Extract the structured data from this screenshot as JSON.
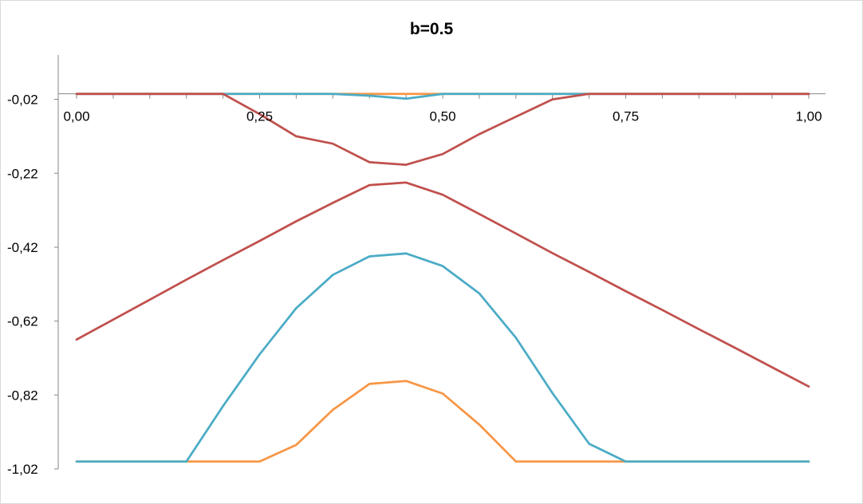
{
  "chart_data": {
    "type": "line",
    "title": "b=0.5",
    "xlabel": "",
    "ylabel": "",
    "xlim": [
      0,
      1
    ],
    "ylim": [
      -1.02,
      0.1
    ],
    "x_ticks": [
      0,
      0.25,
      0.5,
      0.75,
      1
    ],
    "x_tick_labels": [
      "0,00",
      "0,25",
      "0,50",
      "0,75",
      "1,00"
    ],
    "y_ticks": [
      -0.02,
      -0.22,
      -0.42,
      -0.62,
      -0.82,
      -1.02
    ],
    "y_tick_labels": [
      "-0,02",
      "-0,22",
      "-0,42",
      "-0,62",
      "-0,82",
      "-1,02"
    ],
    "x_axis_crosses_y": -0.005,
    "x_minor_step": 0.05,
    "grid": false,
    "legend": "none",
    "series": [
      {
        "color": "#f79646",
        "x": [
          0,
          0.05,
          0.1,
          0.15,
          0.2,
          0.25,
          0.3,
          0.35,
          0.4,
          0.45,
          0.5,
          0.55,
          0.6,
          0.65,
          0.7,
          0.75,
          0.8,
          0.85,
          0.9,
          0.95,
          1
        ],
        "y": [
          -1.0,
          -1.0,
          -1.0,
          -1.0,
          -1.0,
          -1.0,
          -0.955,
          -0.86,
          -0.79,
          -0.782,
          -0.816,
          -0.9,
          -1.0,
          -1.0,
          -1.0,
          -1.0,
          -1.0,
          -1.0,
          -1.0,
          -1.0,
          -1.0
        ]
      },
      {
        "color": "#f79646",
        "x": [
          0,
          0.05,
          0.1,
          0.15,
          0.2,
          0.25,
          0.3,
          0.35,
          0.4,
          0.45,
          0.5,
          0.55,
          0.6,
          0.65,
          0.7,
          0.75,
          0.8,
          0.85,
          0.9,
          0.95,
          1
        ],
        "y": [
          -0.005,
          -0.005,
          -0.005,
          -0.005,
          -0.005,
          -0.005,
          -0.005,
          -0.005,
          -0.005,
          -0.005,
          -0.005,
          -0.005,
          -0.005,
          -0.005,
          -0.005,
          -0.005,
          -0.005,
          -0.005,
          -0.005,
          -0.005,
          -0.005
        ]
      },
      {
        "color": "#4bacc6",
        "x": [
          0,
          0.05,
          0.1,
          0.15,
          0.2,
          0.25,
          0.3,
          0.35,
          0.4,
          0.45,
          0.5,
          0.55,
          0.6,
          0.65,
          0.7,
          0.75,
          0.8,
          0.85,
          0.9,
          0.95,
          1
        ],
        "y": [
          -1.0,
          -1.0,
          -1.0,
          -1.0,
          -0.85,
          -0.71,
          -0.585,
          -0.495,
          -0.445,
          -0.437,
          -0.471,
          -0.545,
          -0.665,
          -0.815,
          -0.952,
          -1.0,
          -1.0,
          -1.0,
          -1.0,
          -1.0,
          -1.0
        ]
      },
      {
        "color": "#4bacc6",
        "x": [
          0,
          0.05,
          0.1,
          0.15,
          0.2,
          0.25,
          0.3,
          0.35,
          0.4,
          0.45,
          0.5,
          0.55,
          0.6,
          0.65,
          0.7,
          0.75,
          0.8,
          0.85,
          0.9,
          0.95,
          1
        ],
        "y": [
          -0.005,
          -0.005,
          -0.005,
          -0.005,
          -0.005,
          -0.005,
          -0.005,
          -0.005,
          -0.01,
          -0.018,
          -0.005,
          -0.005,
          -0.005,
          -0.005,
          -0.005,
          -0.005,
          -0.005,
          -0.005,
          -0.005,
          -0.005,
          -0.005
        ]
      },
      {
        "color": "#c0504d",
        "x": [
          0,
          0.05,
          0.1,
          0.15,
          0.2,
          0.25,
          0.3,
          0.35,
          0.4,
          0.45,
          0.5,
          0.55,
          0.6,
          0.65,
          0.7,
          0.75,
          0.8,
          0.85,
          0.9,
          0.95,
          1
        ],
        "y": [
          -0.67,
          -0.616,
          -0.562,
          -0.508,
          -0.455,
          -0.403,
          -0.35,
          -0.3,
          -0.252,
          -0.245,
          -0.278,
          -0.33,
          -0.383,
          -0.436,
          -0.487,
          -0.539,
          -0.59,
          -0.642,
          -0.693,
          -0.745,
          -0.797
        ]
      },
      {
        "color": "#c0504d",
        "x": [
          0,
          0.05,
          0.1,
          0.15,
          0.2,
          0.25,
          0.3,
          0.35,
          0.4,
          0.45,
          0.5,
          0.55,
          0.6,
          0.65,
          0.7,
          0.75,
          0.8,
          0.85,
          0.9,
          0.95,
          1
        ],
        "y": [
          -0.005,
          -0.005,
          -0.005,
          -0.005,
          -0.005,
          -0.06,
          -0.12,
          -0.14,
          -0.19,
          -0.197,
          -0.168,
          -0.114,
          -0.067,
          -0.02,
          -0.005,
          -0.005,
          -0.005,
          -0.005,
          -0.005,
          -0.005,
          -0.005
        ]
      }
    ]
  }
}
